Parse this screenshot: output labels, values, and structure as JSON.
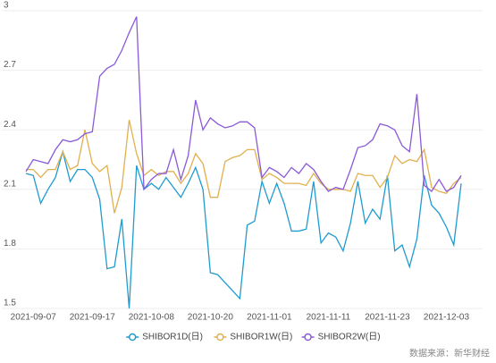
{
  "chart_data": {
    "type": "line",
    "categories": [
      null,
      "2021-09-07",
      null,
      null,
      null,
      null,
      null,
      null,
      null,
      "2021-09-17",
      null,
      null,
      null,
      null,
      null,
      null,
      null,
      "2021-10-08",
      null,
      null,
      null,
      null,
      null,
      null,
      null,
      "2021-10-20",
      null,
      null,
      null,
      null,
      null,
      null,
      null,
      "2021-11-01",
      null,
      null,
      null,
      null,
      null,
      null,
      null,
      "2021-11-11",
      null,
      null,
      null,
      null,
      null,
      null,
      null,
      "2021-11-23",
      null,
      null,
      null,
      null,
      null,
      null,
      null,
      "2021-12-03",
      null,
      null
    ],
    "series": [
      {
        "name": "SHIBOR1D(日)",
        "color": "#1f9bcf",
        "values": [
          2.18,
          2.17,
          2.03,
          2.1,
          2.16,
          2.29,
          2.14,
          2.2,
          2.2,
          2.16,
          2.05,
          1.7,
          1.71,
          1.95,
          1.5,
          2.22,
          2.1,
          2.13,
          2.1,
          2.16,
          2.11,
          2.06,
          2.13,
          2.21,
          2.1,
          1.68,
          1.67,
          1.63,
          1.59,
          1.55,
          1.92,
          1.94,
          2.14,
          2.03,
          2.13,
          2.03,
          1.89,
          1.89,
          1.9,
          2.14,
          1.83,
          1.88,
          1.86,
          1.79,
          1.93,
          2.14,
          1.93,
          2.0,
          1.95,
          2.17,
          1.79,
          1.82,
          1.71,
          1.85,
          2.17,
          2.02,
          1.98,
          1.91,
          1.82,
          2.13
        ]
      },
      {
        "name": "SHIBOR1W(日)",
        "color": "#e0b04e",
        "values": [
          2.2,
          2.2,
          2.16,
          2.2,
          2.2,
          2.29,
          2.2,
          2.22,
          2.4,
          2.23,
          2.19,
          2.22,
          1.98,
          2.11,
          2.45,
          2.28,
          2.17,
          2.2,
          2.17,
          2.19,
          2.19,
          2.13,
          2.18,
          2.28,
          2.23,
          2.06,
          2.06,
          2.24,
          2.26,
          2.27,
          2.3,
          2.3,
          2.15,
          2.18,
          2.16,
          2.13,
          2.13,
          2.13,
          2.12,
          2.18,
          2.13,
          2.1,
          2.1,
          2.1,
          2.09,
          2.18,
          2.17,
          2.17,
          2.11,
          2.16,
          2.27,
          2.23,
          2.25,
          2.24,
          2.3,
          2.11,
          2.09,
          2.08,
          2.13,
          2.16
        ]
      },
      {
        "name": "SHIBOR2W(日)",
        "color": "#8a5ad8",
        "values": [
          2.19,
          2.25,
          2.24,
          2.23,
          2.3,
          2.35,
          2.34,
          2.35,
          2.38,
          2.39,
          2.67,
          2.71,
          2.73,
          2.8,
          2.89,
          2.97,
          2.1,
          2.15,
          2.18,
          2.18,
          2.3,
          2.15,
          2.27,
          2.55,
          2.4,
          2.46,
          2.43,
          2.41,
          2.42,
          2.44,
          2.44,
          2.41,
          2.16,
          2.21,
          2.19,
          2.16,
          2.21,
          2.18,
          2.23,
          2.2,
          2.14,
          2.09,
          2.11,
          2.1,
          2.2,
          2.31,
          2.32,
          2.35,
          2.43,
          2.42,
          2.4,
          2.32,
          2.29,
          2.58,
          2.12,
          2.09,
          2.15,
          2.09,
          2.11,
          2.17
        ]
      }
    ],
    "ylim": [
      1.5,
      3
    ],
    "yticks": [
      1.5,
      1.8,
      2.1,
      2.4,
      2.7,
      3
    ],
    "grid": true,
    "legend": "bottom",
    "source": "数据来源：新华财经"
  }
}
